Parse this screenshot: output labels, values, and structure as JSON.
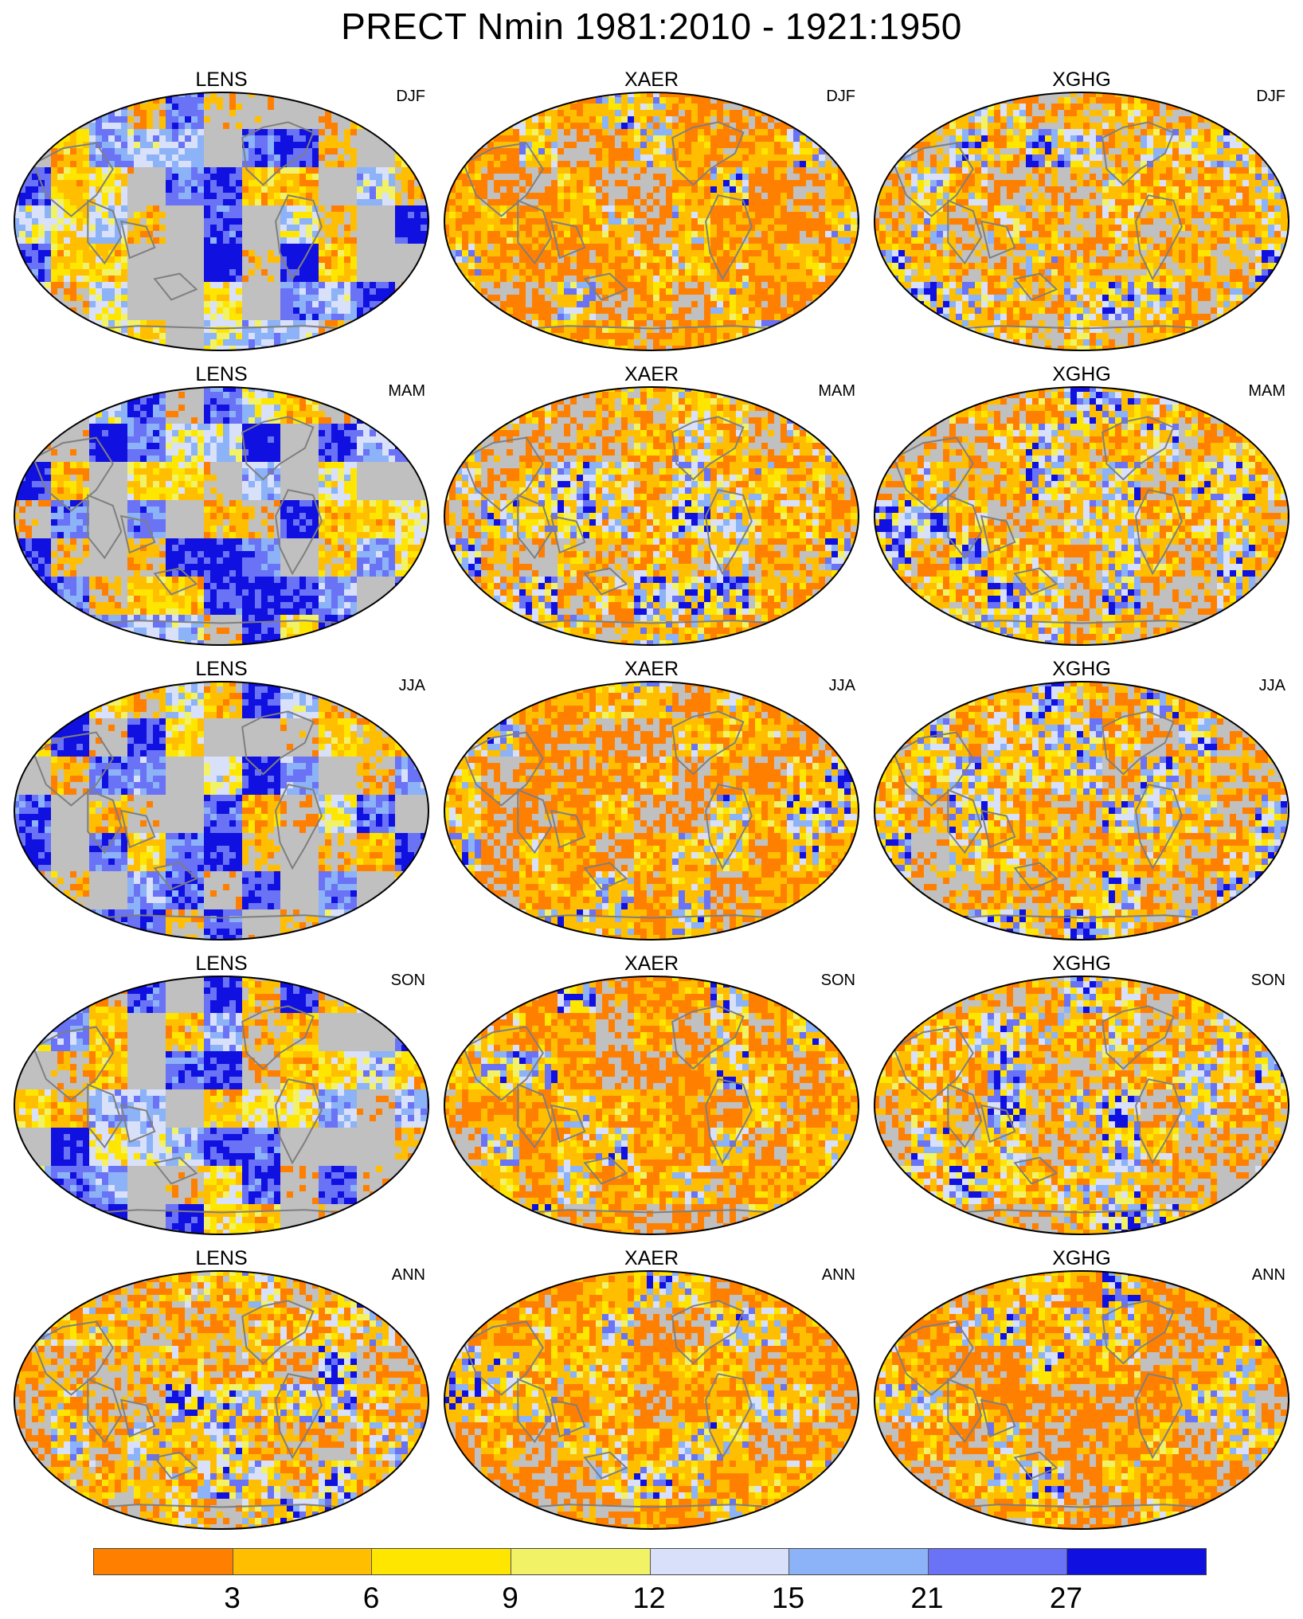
{
  "title": "PRECT Nmin 1981:2010 - 1921:1950",
  "columns": [
    "LENS",
    "XAER",
    "XGHG"
  ],
  "rows": [
    "DJF",
    "MAM",
    "JJA",
    "SON",
    "ANN"
  ],
  "colorbar": {
    "colors": [
      "#ff8000",
      "#ffbf00",
      "#ffe600",
      "#f2f266",
      "#d9e0fa",
      "#8cb2f7",
      "#6a72f5",
      "#1010e0"
    ],
    "labels": [
      "3",
      "6",
      "9",
      "12",
      "15",
      "21",
      "27"
    ]
  },
  "colors": {
    "land_missing": "#c0c0c0",
    "coastline": "#7f7f7f",
    "map_border": "#000000"
  },
  "panels": [
    {
      "model": "LENS",
      "season": "DJF",
      "dominant": "blue"
    },
    {
      "model": "XAER",
      "season": "DJF",
      "dominant": "orange"
    },
    {
      "model": "XGHG",
      "season": "DJF",
      "dominant": "mixed"
    },
    {
      "model": "LENS",
      "season": "MAM",
      "dominant": "blue"
    },
    {
      "model": "XAER",
      "season": "MAM",
      "dominant": "mixed"
    },
    {
      "model": "XGHG",
      "season": "MAM",
      "dominant": "mixed"
    },
    {
      "model": "LENS",
      "season": "JJA",
      "dominant": "blue"
    },
    {
      "model": "XAER",
      "season": "JJA",
      "dominant": "orange"
    },
    {
      "model": "XGHG",
      "season": "JJA",
      "dominant": "mixed"
    },
    {
      "model": "LENS",
      "season": "SON",
      "dominant": "blue"
    },
    {
      "model": "XAER",
      "season": "SON",
      "dominant": "orange"
    },
    {
      "model": "XGHG",
      "season": "SON",
      "dominant": "mixed"
    },
    {
      "model": "LENS",
      "season": "ANN",
      "dominant": "mixed"
    },
    {
      "model": "XAER",
      "season": "ANN",
      "dominant": "orange"
    },
    {
      "model": "XGHG",
      "season": "ANN",
      "dominant": "orange"
    }
  ]
}
